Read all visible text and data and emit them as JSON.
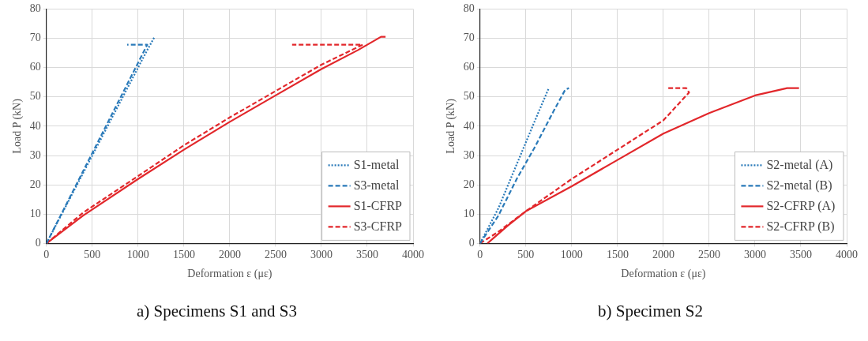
{
  "chart_data": [
    {
      "type": "line",
      "xlabel": "Deformation ε (με)",
      "ylabel": "Load P (kN)",
      "xlim": [
        0,
        4000
      ],
      "xticks": [
        0,
        500,
        1000,
        1500,
        2000,
        2500,
        3000,
        3500,
        4000
      ],
      "ylim": [
        0,
        80
      ],
      "yticks": [
        0,
        10,
        20,
        30,
        40,
        50,
        60,
        70,
        80
      ],
      "grid": true,
      "legend": "bottom right",
      "marker": "none",
      "annotations": [
        "a) Specimens S1 and S3"
      ],
      "series": [
        {
          "name": "S1-metal",
          "color": "#2a7ab9",
          "line_style": "dotted",
          "x": [
            0,
            300,
            600,
            900,
            1100,
            1180
          ],
          "values": [
            0,
            18,
            36,
            54,
            66,
            70.5
          ]
        },
        {
          "name": "S3-metal",
          "color": "#2a7ab9",
          "line_style": "dashed",
          "x": [
            0,
            300,
            600,
            900,
            1100,
            880
          ],
          "values": [
            0,
            18.5,
            37,
            55.5,
            67.8,
            67.8
          ]
        },
        {
          "name": "S1-CFRP",
          "color": "#e2272b",
          "line_style": "solid",
          "x": [
            0,
            400,
            1000,
            1500,
            2000,
            2500,
            3000,
            3400,
            3650,
            3700
          ],
          "values": [
            0,
            9.5,
            22,
            32,
            41.5,
            50.5,
            59.5,
            66,
            70.5,
            70.5
          ]
        },
        {
          "name": "S3-CFRP",
          "color": "#e2272b",
          "line_style": "dashed",
          "x": [
            0,
            400,
            1000,
            1500,
            2000,
            2500,
            3000,
            3450,
            2680
          ],
          "values": [
            0,
            10.5,
            23,
            33.5,
            43,
            52,
            61,
            67.8,
            67.8
          ]
        }
      ]
    },
    {
      "type": "line",
      "xlabel": "Deformation ε (με)",
      "ylabel": "Load P (kN)",
      "xlim": [
        0,
        4000
      ],
      "xticks": [
        0,
        500,
        1000,
        1500,
        2000,
        2500,
        3000,
        3500,
        4000
      ],
      "ylim": [
        0,
        80
      ],
      "yticks": [
        0,
        10,
        20,
        30,
        40,
        50,
        60,
        70,
        80
      ],
      "grid": true,
      "legend": "bottom right",
      "marker": "none",
      "annotations": [
        "b) Specimen S2"
      ],
      "series": [
        {
          "name": "S2-metal (A)",
          "color": "#2a7ab9",
          "line_style": "dotted",
          "x": [
            0,
            200,
            400,
            600,
            750
          ],
          "values": [
            0,
            12,
            27,
            42,
            53
          ]
        },
        {
          "name": "S2-metal (B)",
          "color": "#2a7ab9",
          "line_style": "dashed",
          "x": [
            0,
            200,
            400,
            600,
            800,
            930,
            970
          ],
          "values": [
            0,
            9.5,
            22,
            33,
            45,
            52.5,
            53
          ]
        },
        {
          "name": "S2-CFRP (A)",
          "color": "#e2272b",
          "line_style": "solid",
          "x": [
            80,
            300,
            500,
            1000,
            1500,
            2000,
            2500,
            3000,
            3350,
            3480
          ],
          "values": [
            0,
            6,
            11,
            19.5,
            28.5,
            37.5,
            44.5,
            50.5,
            53,
            53
          ]
        },
        {
          "name": "S2-CFRP (B)",
          "color": "#e2272b",
          "line_style": "dashed",
          "x": [
            0,
            200,
            500,
            1000,
            1500,
            2000,
            2280,
            2250,
            2030
          ],
          "values": [
            0,
            4,
            11,
            22,
            32,
            42,
            51.5,
            53,
            53
          ]
        }
      ]
    }
  ]
}
